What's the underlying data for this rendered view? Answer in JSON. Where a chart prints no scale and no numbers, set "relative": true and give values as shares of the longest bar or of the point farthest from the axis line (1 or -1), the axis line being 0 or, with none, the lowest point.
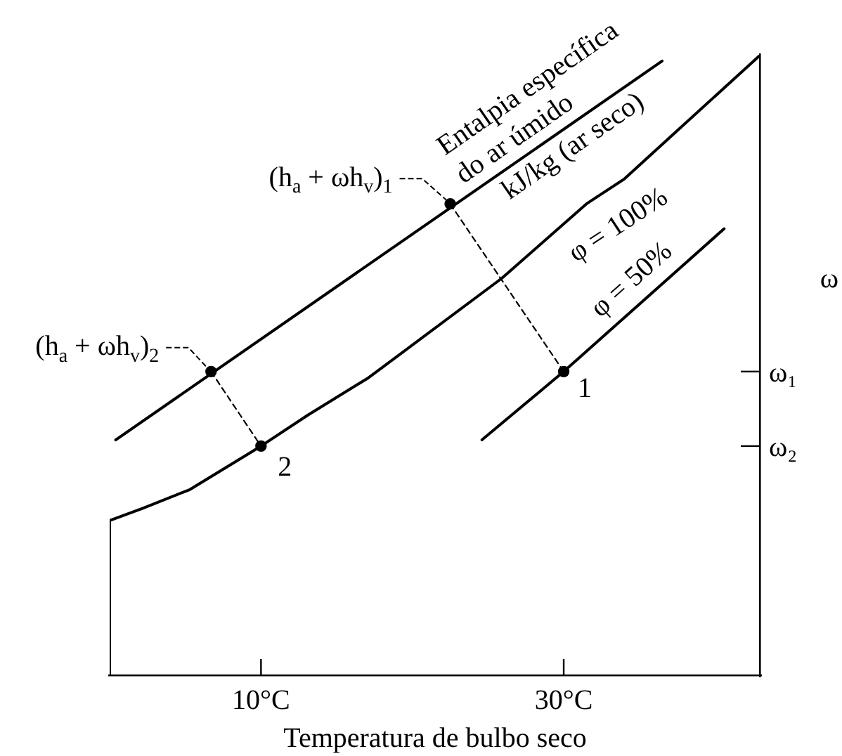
{
  "chart_data": {
    "type": "line",
    "relative": true,
    "xlabel": "Temperatura de bulbo seco",
    "ylabel": "ω",
    "xlim": [
      0,
      43
    ],
    "xticks": [
      {
        "value": 10,
        "label": "10°C"
      },
      {
        "value": 30,
        "label": "30°C"
      }
    ],
    "tick_labels": "x",
    "marker": "none",
    "series": [
      {
        "color": "#000000",
        "x": [
          0,
          0,
          2.2,
          5.3,
          10,
          13.1,
          17.1,
          25.9,
          31.5,
          34,
          37.6,
          43
        ],
        "values": [
          0,
          0.25,
          0.27,
          0.3,
          0.37,
          0.42,
          0.48,
          0.64,
          0.76,
          0.8,
          0.88,
          1
        ]
      },
      {
        "color": "#000000",
        "x": [
          24.6,
          30,
          40.6
        ],
        "values": [
          0.38,
          0.49,
          0.72
        ]
      },
      {
        "color": "#000000",
        "x": [
          0.4,
          36.5
        ],
        "values": [
          0.38,
          0.99
        ]
      },
      {
        "color": "#000000",
        "line_style": "dashed",
        "x": [
          22.5,
          30
        ],
        "values": [
          0.76,
          0.49
        ]
      },
      {
        "color": "#000000",
        "line_style": "dashed",
        "x": [
          6.7,
          10
        ],
        "values": [
          0.49,
          0.37
        ]
      },
      {
        "type": "scatter",
        "color": "#000000",
        "marker": "circle",
        "x": [
          6.7,
          10,
          22.5,
          30
        ],
        "values": [
          0.49,
          0.37,
          0.76,
          0.49
        ]
      }
    ],
    "annotations": [
      {
        "text": "(h$_{a}$ + ωh$_{v}$)$_{1}$",
        "x": 22.5,
        "y": 0.76
      },
      {
        "text": "(h$_{a}$ + ωh$_{v}$)$_{2}$",
        "x": 6.7,
        "y": 0.49
      },
      {
        "text": "1",
        "x": 30,
        "y": 0.49
      },
      {
        "text": "2",
        "x": 10,
        "y": 0.37
      },
      {
        "text": "φ = 100%",
        "x": 32.4,
        "y": 0.77
      },
      {
        "text": "φ = 50%",
        "x": 35.5,
        "y": 0.61
      },
      {
        "text": "Entalpia específica\ndo ar úmido\nkJ/kg (ar seco)",
        "x": 29.1,
        "y": 0.87
      },
      "ω₁",
      "ω₂"
    ]
  }
}
